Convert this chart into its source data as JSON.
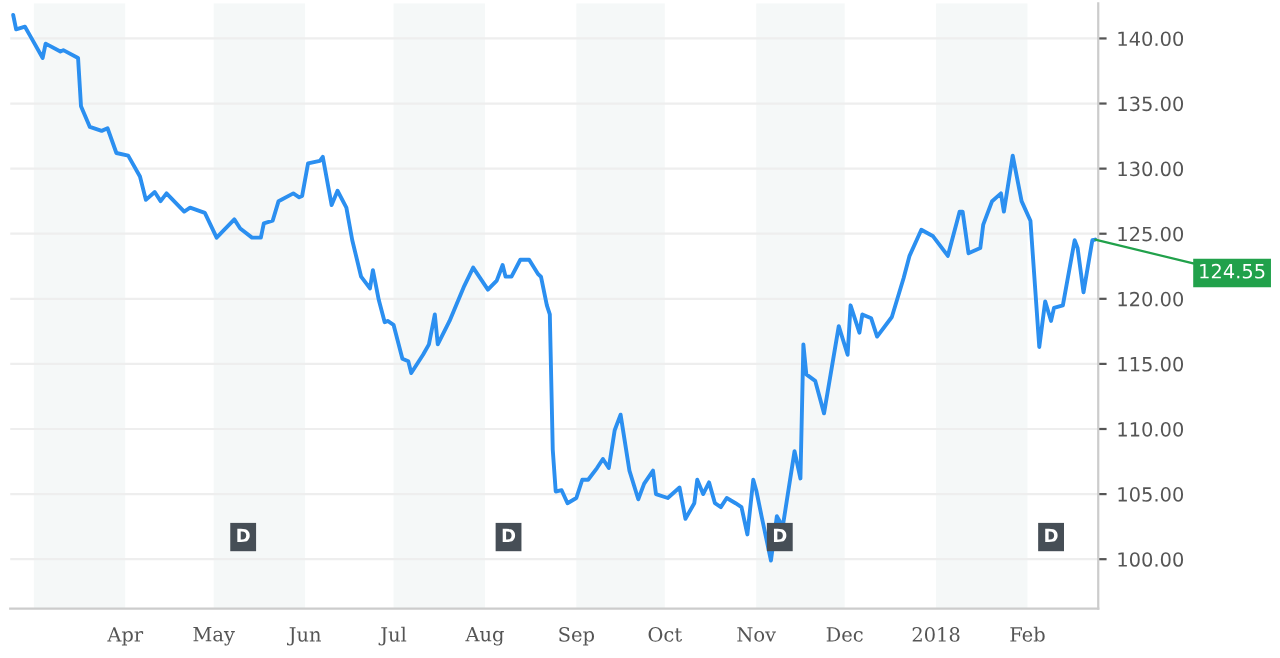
{
  "chart_data": {
    "type": "line",
    "x": [
      "2017-02-22",
      "2017-02-23",
      "2017-02-26",
      "2017-02-28",
      "2017-03-04",
      "2017-03-05",
      "2017-03-10",
      "2017-03-11",
      "2017-03-16",
      "2017-03-17",
      "2017-03-20",
      "2017-03-24",
      "2017-03-26",
      "2017-03-29",
      "2017-04-02",
      "2017-04-06",
      "2017-04-08",
      "2017-04-11",
      "2017-04-13",
      "2017-04-15",
      "2017-04-21",
      "2017-04-23",
      "2017-04-28",
      "2017-05-02",
      "2017-05-08",
      "2017-05-10",
      "2017-05-14",
      "2017-05-17",
      "2017-05-18",
      "2017-05-21",
      "2017-05-23",
      "2017-05-28",
      "2017-05-30",
      "2017-05-31",
      "2017-06-02",
      "2017-06-06",
      "2017-06-07",
      "2017-06-10",
      "2017-06-12",
      "2017-06-15",
      "2017-06-17",
      "2017-06-20",
      "2017-06-23",
      "2017-06-24",
      "2017-06-26",
      "2017-06-28",
      "2017-06-29",
      "2017-07-01",
      "2017-07-04",
      "2017-07-06",
      "2017-07-07",
      "2017-07-11",
      "2017-07-13",
      "2017-07-15",
      "2017-07-16",
      "2017-07-20",
      "2017-07-25",
      "2017-07-28",
      "2017-08-02",
      "2017-08-05",
      "2017-08-07",
      "2017-08-08",
      "2017-08-10",
      "2017-08-13",
      "2017-08-16",
      "2017-08-19",
      "2017-08-20",
      "2017-08-22",
      "2017-08-23",
      "2017-08-24",
      "2017-08-25",
      "2017-08-27",
      "2017-08-29",
      "2017-09-01",
      "2017-09-03",
      "2017-09-05",
      "2017-09-08",
      "2017-09-10",
      "2017-09-12",
      "2017-09-14",
      "2017-09-16",
      "2017-09-19",
      "2017-09-22",
      "2017-09-24",
      "2017-09-27",
      "2017-09-28",
      "2017-10-02",
      "2017-10-06",
      "2017-10-08",
      "2017-10-11",
      "2017-10-12",
      "2017-10-14",
      "2017-10-16",
      "2017-10-18",
      "2017-10-20",
      "2017-10-22",
      "2017-10-25",
      "2017-10-27",
      "2017-10-29",
      "2017-10-31",
      "2017-11-01",
      "2017-11-03",
      "2017-11-06",
      "2017-11-08",
      "2017-11-10",
      "2017-11-14",
      "2017-11-16",
      "2017-11-17",
      "2017-11-18",
      "2017-11-21",
      "2017-11-24",
      "2017-11-29",
      "2017-12-02",
      "2017-12-03",
      "2017-12-06",
      "2017-12-07",
      "2017-12-10",
      "2017-12-12",
      "2017-12-17",
      "2017-12-21",
      "2017-12-23",
      "2017-12-27",
      "2017-12-31",
      "2018-01-05",
      "2018-01-09",
      "2018-01-10",
      "2018-01-12",
      "2018-01-16",
      "2018-01-17",
      "2018-01-20",
      "2018-01-23",
      "2018-01-24",
      "2018-01-27",
      "2018-01-30",
      "2018-02-02",
      "2018-02-05",
      "2018-02-07",
      "2018-02-09",
      "2018-02-10",
      "2018-02-13",
      "2018-02-17",
      "2018-02-18",
      "2018-02-20",
      "2018-02-23",
      "2018-02-24"
    ],
    "series": [
      {
        "color": "#2b8ff0",
        "values": [
          141.8,
          140.7,
          140.9,
          140.1,
          138.5,
          139.6,
          139.0,
          139.1,
          138.5,
          134.8,
          133.2,
          132.9,
          133.1,
          131.2,
          131.0,
          129.4,
          127.6,
          128.2,
          127.5,
          128.1,
          126.7,
          127.0,
          126.6,
          124.7,
          126.1,
          125.4,
          124.7,
          124.7,
          125.8,
          126.0,
          127.5,
          128.1,
          127.8,
          127.9,
          130.4,
          130.6,
          130.9,
          127.2,
          128.3,
          127.0,
          124.5,
          121.7,
          120.8,
          122.2,
          119.9,
          118.2,
          118.3,
          118.0,
          115.4,
          115.2,
          114.3,
          115.7,
          116.5,
          118.8,
          116.5,
          118.3,
          121.0,
          122.4,
          120.7,
          121.4,
          122.6,
          121.7,
          121.7,
          123.0,
          123.0,
          121.9,
          121.7,
          119.5,
          118.8,
          108.4,
          105.2,
          105.3,
          104.3,
          104.7,
          106.1,
          106.1,
          107.0,
          107.7,
          107.0,
          109.9,
          111.1,
          106.8,
          104.6,
          105.8,
          106.8,
          105.0,
          104.7,
          105.5,
          103.1,
          104.3,
          106.1,
          105.0,
          105.9,
          104.3,
          104.0,
          104.7,
          104.3,
          104.0,
          101.9,
          106.1,
          105.3,
          103.1,
          99.9,
          103.3,
          102.5,
          108.3,
          106.2,
          116.5,
          114.2,
          113.7,
          111.2,
          117.9,
          115.7,
          119.5,
          117.4,
          118.8,
          118.5,
          117.1,
          118.6,
          121.6,
          123.3,
          125.3,
          124.8,
          123.3,
          126.7,
          126.7,
          123.5,
          123.9,
          125.7,
          127.5,
          128.1,
          126.7,
          131.0,
          127.5,
          126.0,
          116.3,
          119.8,
          118.3,
          119.3,
          119.5,
          124.5,
          123.9,
          120.5,
          124.5,
          124.55
        ]
      }
    ],
    "xlim": [
      "2017-02-21",
      "2018-02-25"
    ],
    "xticks": [
      {
        "value": "2017-04-01",
        "label": "Apr"
      },
      {
        "value": "2017-05-01",
        "label": "May"
      },
      {
        "value": "2017-06-01",
        "label": "Jun"
      },
      {
        "value": "2017-07-01",
        "label": "Jul"
      },
      {
        "value": "2017-08-01",
        "label": "Aug"
      },
      {
        "value": "2017-09-01",
        "label": "Sep"
      },
      {
        "value": "2017-10-01",
        "label": "Oct"
      },
      {
        "value": "2017-11-01",
        "label": "Nov"
      },
      {
        "value": "2017-12-01",
        "label": "Dec"
      },
      {
        "value": "2018-01-01",
        "label": "2018"
      },
      {
        "value": "2018-02-01",
        "label": "Feb"
      }
    ],
    "ylim": [
      96.2,
      142.7
    ],
    "yticks": [
      {
        "value": 100,
        "label": "100.00"
      },
      {
        "value": 105,
        "label": "105.00"
      },
      {
        "value": 110,
        "label": "110.00"
      },
      {
        "value": 115,
        "label": "115.00"
      },
      {
        "value": 120,
        "label": "120.00"
      },
      {
        "value": 125,
        "label": "125.00"
      },
      {
        "value": 130,
        "label": "130.00"
      },
      {
        "value": 135,
        "label": "135.00"
      },
      {
        "value": 140,
        "label": "140.00"
      }
    ],
    "grid": "y",
    "bands": [
      {
        "axis": "x",
        "from": "2017-03-01",
        "to": "2017-04-01",
        "color": "#f5f8f8"
      },
      {
        "axis": "x",
        "from": "2017-05-01",
        "to": "2017-06-01",
        "color": "#f5f8f8"
      },
      {
        "axis": "x",
        "from": "2017-07-01",
        "to": "2017-08-01",
        "color": "#f5f8f8"
      },
      {
        "axis": "x",
        "from": "2017-09-01",
        "to": "2017-10-01",
        "color": "#f5f8f8"
      },
      {
        "axis": "x",
        "from": "2017-11-01",
        "to": "2017-12-01",
        "color": "#f5f8f8"
      },
      {
        "axis": "x",
        "from": "2018-01-01",
        "to": "2018-02-01",
        "color": "#f5f8f8"
      }
    ],
    "annotations": [
      {
        "text": "D",
        "x": "2017-05-11",
        "y": 101.7
      },
      {
        "text": "D",
        "x": "2017-08-09",
        "y": 101.7
      },
      {
        "text": "D",
        "x": "2017-11-09",
        "y": 101.7
      },
      {
        "text": "D",
        "x": "2018-02-09",
        "y": 101.7
      },
      {
        "text": "124.55",
        "x": "2018-02-24",
        "y": 124.55
      }
    ]
  }
}
